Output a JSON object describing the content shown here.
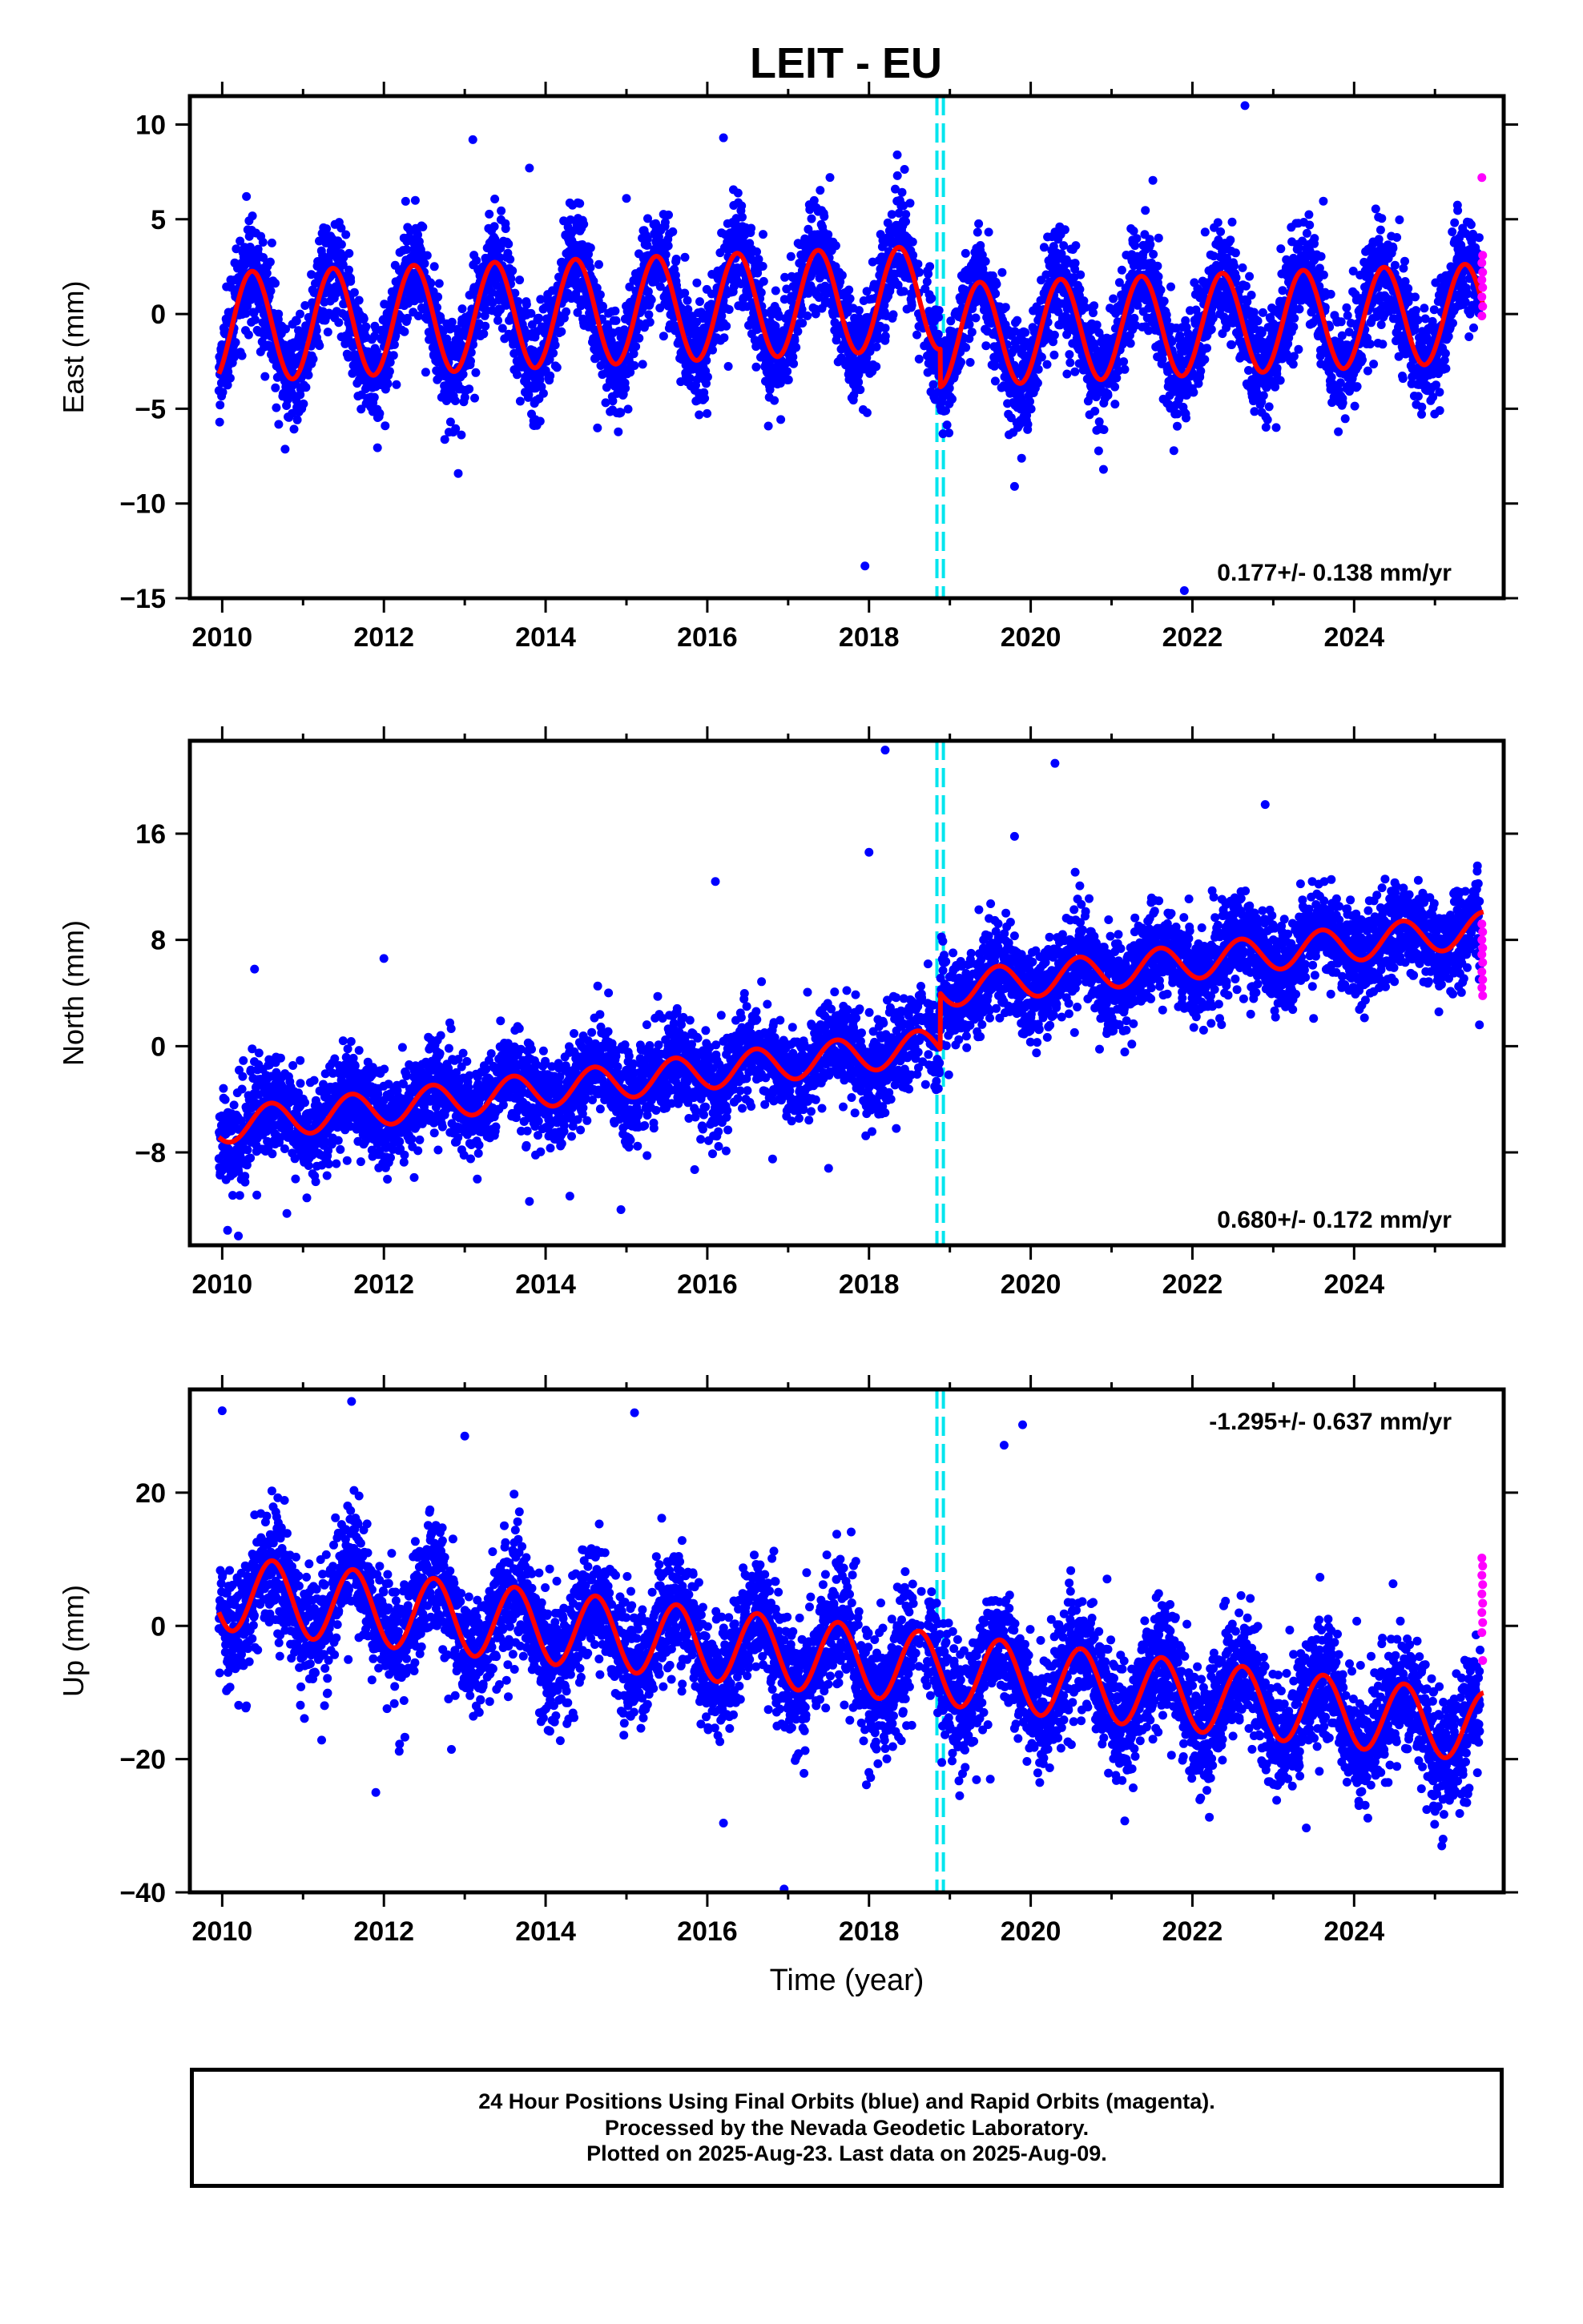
{
  "chart_data": {
    "type": "scatter",
    "title": "LEIT - EU",
    "xlabel": "Time (year)",
    "xlim": [
      2009.6,
      2025.85
    ],
    "xticks": [
      2010,
      2012,
      2014,
      2016,
      2018,
      2020,
      2022,
      2024
    ],
    "offset_lines": [
      2018.84,
      2018.92
    ],
    "last_date": "2025-Aug-09",
    "colors": {
      "final_orbits": "#0000ff",
      "rapid_orbits": "#ff00ff",
      "model_fit": "#ff0000",
      "offset_line": "#00e5ee"
    },
    "panels": [
      {
        "id": "east",
        "ylabel": "East (mm)",
        "ylim": [
          -15,
          11.5
        ],
        "yticks": [
          10,
          5,
          0,
          -5,
          -10,
          -15
        ],
        "velocity_label": "0.177+/- 0.138 mm/yr",
        "velocity_position": "bottom-right",
        "model": {
          "start": 2010.0,
          "intercept": -0.7,
          "rate": 0.177,
          "step": -2.0,
          "annual_amp_start": 2.9,
          "annual_amp_end": 2.6,
          "peak_phase": 0.37
        },
        "scatter_sd": 1.35,
        "rapid_orbits_values": [
          7.2,
          3.1,
          2.7,
          2.2,
          1.8,
          1.4,
          0.9,
          0.4,
          -0.1
        ],
        "outliers": [
          [
            2013.1,
            9.2
          ],
          [
            2013.8,
            7.7
          ],
          [
            2016.2,
            9.3
          ],
          [
            2017.95,
            -13.3
          ],
          [
            2020.9,
            -8.2
          ],
          [
            2022.65,
            11.0
          ],
          [
            2021.9,
            -14.6
          ],
          [
            2019.8,
            -9.1
          ],
          [
            2010.3,
            6.2
          ],
          [
            2015.0,
            6.1
          ]
        ]
      },
      {
        "id": "north",
        "ylabel": "North (mm)",
        "ylim": [
          -15,
          23
        ],
        "yticks": [
          16,
          8,
          0,
          -8
        ],
        "velocity_label": "0.680+/- 0.172 mm/yr",
        "velocity_position": "bottom-right",
        "model": {
          "start": 2010.0,
          "intercept": -6.0,
          "rate": 0.68,
          "step": 4.2,
          "annual_amp_start": 1.3,
          "annual_amp_end": 1.3,
          "peak_phase": 0.6
        },
        "scatter_sd": 1.7,
        "rapid_orbits_values": [
          9.2,
          8.6,
          8.0,
          7.4,
          6.9,
          6.3,
          5.6,
          5.0,
          4.4,
          3.8
        ],
        "outliers": [
          [
            2018.2,
            22.3
          ],
          [
            2020.3,
            21.3
          ],
          [
            2018.0,
            14.6
          ],
          [
            2022.9,
            18.2
          ],
          [
            2016.1,
            12.4
          ],
          [
            2012.0,
            6.6
          ],
          [
            2010.4,
            5.8
          ],
          [
            2010.2,
            -14.3
          ],
          [
            2010.8,
            -12.6
          ],
          [
            2013.8,
            -11.7
          ],
          [
            2014.3,
            -11.3
          ],
          [
            2017.5,
            -9.2
          ],
          [
            2025.55,
            1.6
          ],
          [
            2019.8,
            15.8
          ]
        ]
      },
      {
        "id": "up",
        "ylabel": "Up (mm)",
        "ylim": [
          -40,
          35.5
        ],
        "yticks": [
          20,
          0,
          -20,
          -40
        ],
        "velocity_label": "-1.295+/- 0.637 mm/yr",
        "velocity_position": "top-right",
        "model": {
          "start": 2010.0,
          "intercept": 5.0,
          "rate": -1.295,
          "step": 0.0,
          "annual_amp_start": 5.6,
          "annual_amp_end": 5.2,
          "peak_phase": 0.62
        },
        "scatter_sd": 4.5,
        "rapid_orbits_values": [
          10.2,
          9.0,
          7.6,
          6.2,
          4.8,
          3.4,
          2.0,
          0.5,
          -1.0,
          -5.2
        ],
        "outliers": [
          [
            2010.0,
            32.3
          ],
          [
            2011.6,
            33.7
          ],
          [
            2015.1,
            32.0
          ],
          [
            2019.9,
            30.2
          ],
          [
            2011.9,
            -25.0
          ],
          [
            2016.2,
            -29.6
          ],
          [
            2016.95,
            -39.5
          ],
          [
            2025.1,
            -32.0
          ],
          [
            2018.9,
            -20.5
          ],
          [
            2019.5,
            -23.0
          ],
          [
            2010.3,
            -12.0
          ],
          [
            2013.0,
            28.5
          ]
        ]
      }
    ]
  },
  "footer": {
    "line1": "24 Hour Positions Using Final Orbits (blue) and Rapid Orbits (magenta).",
    "line2": "Processed by the Nevada Geodetic Laboratory.",
    "line3": "Plotted on 2025-Aug-23. Last data on 2025-Aug-09."
  }
}
